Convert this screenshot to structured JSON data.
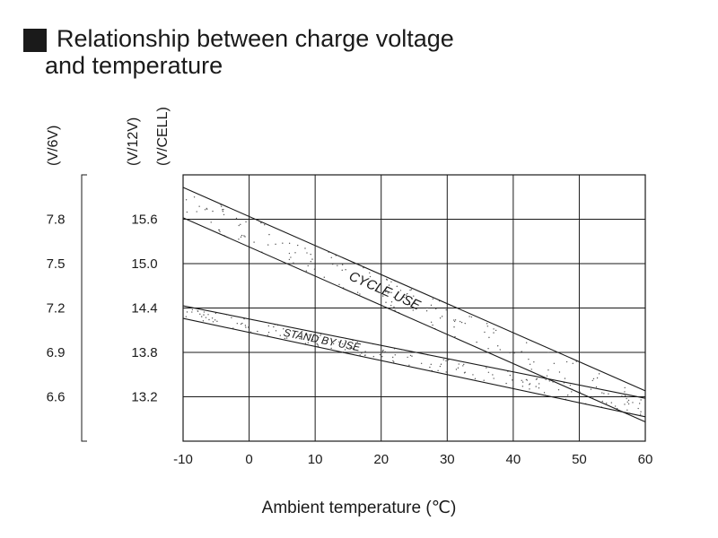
{
  "title": {
    "line1": "Relationship between charge voltage",
    "line2": "and temperature"
  },
  "chart_data": {
    "type": "line",
    "title": "Relationship between charge voltage and temperature",
    "xlabel": "Ambient temperature (℃)",
    "x_ticks": [
      -10,
      0,
      10,
      20,
      30,
      40,
      50,
      60
    ],
    "xlim": [
      -10,
      60
    ],
    "grid": true,
    "y_axes": [
      {
        "unit": "(V/6V)",
        "ticks": [
          "7.8",
          "7.5",
          "7.2",
          "6.9",
          "6.6"
        ],
        "values": [
          7.8,
          7.5,
          7.2,
          6.9,
          6.6
        ]
      },
      {
        "unit": "(V/12V)",
        "ticks": [
          "15.6",
          "15.0",
          "14.4",
          "13.8",
          "13.2"
        ],
        "values": [
          15.6,
          15.0,
          14.4,
          13.8,
          13.2
        ]
      },
      {
        "unit": "(V/CELL)",
        "ticks": [],
        "values": []
      }
    ],
    "ylim_12v": [
      12.6,
      16.2
    ],
    "bands": [
      {
        "name": "CYCLE USE",
        "upper": {
          "x": [
            -10,
            60
          ],
          "y": [
            16.03,
            13.28
          ]
        },
        "lower": {
          "x": [
            -10,
            60
          ],
          "y": [
            15.62,
            12.86
          ]
        }
      },
      {
        "name": "STAND BY USE",
        "upper": {
          "x": [
            -10,
            60
          ],
          "y": [
            14.43,
            13.18
          ]
        },
        "lower": {
          "x": [
            -10,
            60
          ],
          "y": [
            14.26,
            12.93
          ]
        }
      }
    ]
  }
}
